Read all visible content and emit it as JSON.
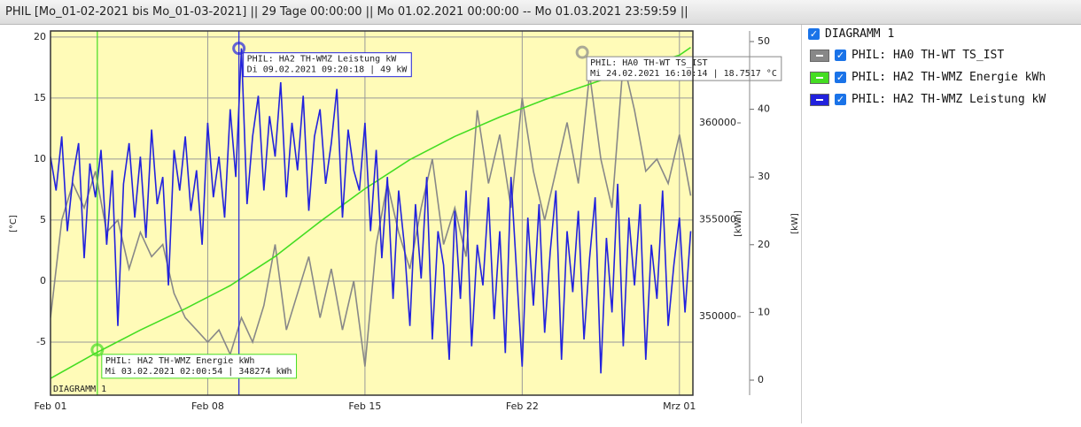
{
  "header": {
    "title": "PHIL [Mo_01-02-2021 bis Mo_01-03-2021] || 29 Tage 00:00:00 || Mo 01.02.2021 00:00:00 -- Mo 01.03.2021 23:59:59 ||"
  },
  "chart_data": {
    "type": "line",
    "name": "DIAGRAMM 1",
    "xlim": [
      0,
      28.6
    ],
    "xticks": [
      {
        "value": 0,
        "label": "Feb 01"
      },
      {
        "value": 7,
        "label": "Feb 08"
      },
      {
        "value": 14,
        "label": "Feb 15"
      },
      {
        "value": 21,
        "label": "Feb 22"
      },
      {
        "value": 28,
        "label": "Mrz 01"
      }
    ],
    "ylim": [
      -9.35,
      20.5
    ],
    "yticks": [
      -5,
      0,
      5,
      10,
      15,
      20
    ],
    "ylabel": "[°C]",
    "y2lim": [
      345936,
      364750
    ],
    "y2ticks": [
      350000,
      355000,
      360000
    ],
    "y2label": "[kWh]",
    "y3lim": [
      -2.22,
      51.57
    ],
    "y3ticks": [
      0,
      10,
      20,
      30,
      40,
      50
    ],
    "y3label": "[kW]",
    "grid": true,
    "series": [
      {
        "name": "PHIL: HA0 TH-WT TS_IST",
        "color": "#888888",
        "axis": "y",
        "x": [
          0,
          0.5,
          1,
          1.5,
          2,
          2.5,
          3,
          3.5,
          4,
          4.5,
          5,
          5.5,
          6,
          6.5,
          7,
          7.5,
          8,
          8.5,
          9,
          9.5,
          10,
          10.5,
          11,
          11.5,
          12,
          12.5,
          13,
          13.5,
          14,
          14.5,
          15,
          15.5,
          16,
          16.5,
          17,
          17.5,
          18,
          18.5,
          19,
          19.5,
          20,
          20.5,
          21,
          21.5,
          22,
          22.5,
          23,
          23.5,
          24,
          24.5,
          25,
          25.5,
          26,
          26.5,
          27,
          27.5,
          28,
          28.5
        ],
        "values": [
          -3,
          5,
          8,
          6,
          9,
          4,
          5,
          1,
          4,
          2,
          3,
          -1,
          -3,
          -4,
          -5,
          -4,
          -6,
          -3,
          -5,
          -2,
          3,
          -4,
          -1,
          2,
          -3,
          1,
          -4,
          0,
          -7,
          3,
          8,
          4,
          1,
          6,
          10,
          3,
          6,
          2,
          14,
          8,
          12,
          6,
          15,
          9,
          5,
          9,
          13,
          8,
          17,
          10,
          6,
          18,
          14,
          9,
          10,
          8,
          12,
          7
        ]
      },
      {
        "name": "PHIL: HA2 TH-WMZ Energie kWh",
        "color": "#44dd22",
        "axis": "y2",
        "x": [
          0,
          2,
          4,
          6,
          8,
          10,
          12,
          14,
          16,
          18,
          20,
          22,
          24,
          26,
          28,
          28.5
        ],
        "values": [
          346800,
          348100,
          349300,
          350400,
          351600,
          353100,
          354900,
          356600,
          358100,
          359300,
          360300,
          361200,
          362000,
          362800,
          363500,
          363900
        ]
      },
      {
        "name": "PHIL: HA2 TH-WMZ Leistung kW",
        "color": "#2222dd",
        "axis": "y3",
        "x": [
          0,
          0.25,
          0.5,
          0.75,
          1,
          1.25,
          1.5,
          1.75,
          2,
          2.25,
          2.5,
          2.75,
          3,
          3.25,
          3.5,
          3.75,
          4,
          4.25,
          4.5,
          4.75,
          5,
          5.25,
          5.5,
          5.75,
          6,
          6.25,
          6.5,
          6.75,
          7,
          7.25,
          7.5,
          7.75,
          8,
          8.25,
          8.5,
          8.75,
          9,
          9.25,
          9.5,
          9.75,
          10,
          10.25,
          10.5,
          10.75,
          11,
          11.25,
          11.5,
          11.75,
          12,
          12.25,
          12.5,
          12.75,
          13,
          13.25,
          13.5,
          13.75,
          14,
          14.25,
          14.5,
          14.75,
          15,
          15.25,
          15.5,
          15.75,
          16,
          16.25,
          16.5,
          16.75,
          17,
          17.25,
          17.5,
          17.75,
          18,
          18.25,
          18.5,
          18.75,
          19,
          19.25,
          19.5,
          19.75,
          20,
          20.25,
          20.5,
          20.75,
          21,
          21.25,
          21.5,
          21.75,
          22,
          22.25,
          22.5,
          22.75,
          23,
          23.25,
          23.5,
          23.75,
          24,
          24.25,
          24.5,
          24.75,
          25,
          25.25,
          25.5,
          25.75,
          26,
          26.25,
          26.5,
          26.75,
          27,
          27.25,
          27.5,
          27.75,
          28,
          28.25,
          28.5
        ],
        "values": [
          33,
          28,
          36,
          22,
          30,
          35,
          18,
          32,
          27,
          34,
          20,
          31,
          8,
          29,
          35,
          24,
          33,
          21,
          37,
          26,
          30,
          14,
          34,
          28,
          36,
          25,
          31,
          20,
          38,
          27,
          33,
          24,
          40,
          30,
          49,
          26,
          36,
          42,
          28,
          39,
          33,
          44,
          27,
          38,
          31,
          42,
          25,
          36,
          40,
          29,
          35,
          43,
          24,
          37,
          31,
          28,
          38,
          22,
          34,
          18,
          30,
          12,
          28,
          20,
          8,
          26,
          15,
          30,
          6,
          22,
          17,
          3,
          25,
          12,
          28,
          5,
          20,
          14,
          27,
          9,
          22,
          4,
          30,
          16,
          2,
          24,
          11,
          26,
          7,
          19,
          28,
          3,
          22,
          13,
          25,
          6,
          18,
          27,
          1,
          21,
          10,
          29,
          5,
          24,
          14,
          26,
          3,
          20,
          12,
          28,
          8,
          17,
          24,
          10,
          22
        ]
      }
    ],
    "annotations": [
      {
        "series": 2,
        "x": 8.389,
        "value": 49,
        "cursor_line": true,
        "lines": [
          "PHIL: HA2 TH-WMZ Leistung kW",
          "Di 09.02.2021 09:20:18 | 49 kW"
        ]
      },
      {
        "series": 0,
        "x": 23.674,
        "value": 18.7517,
        "cursor_line": false,
        "lines": [
          "PHIL: HA0 TH-WT TS_IST",
          "Mi 24.02.2021 16:10:14 | 18.7517 °C"
        ]
      },
      {
        "series": 1,
        "x": 2.084,
        "value": 348274,
        "cursor_line": true,
        "lines": [
          "PHIL: HA2 TH-WMZ Energie kWh",
          "Mi 03.02.2021 02:00:54 | 348274 kWh"
        ]
      }
    ]
  }
}
